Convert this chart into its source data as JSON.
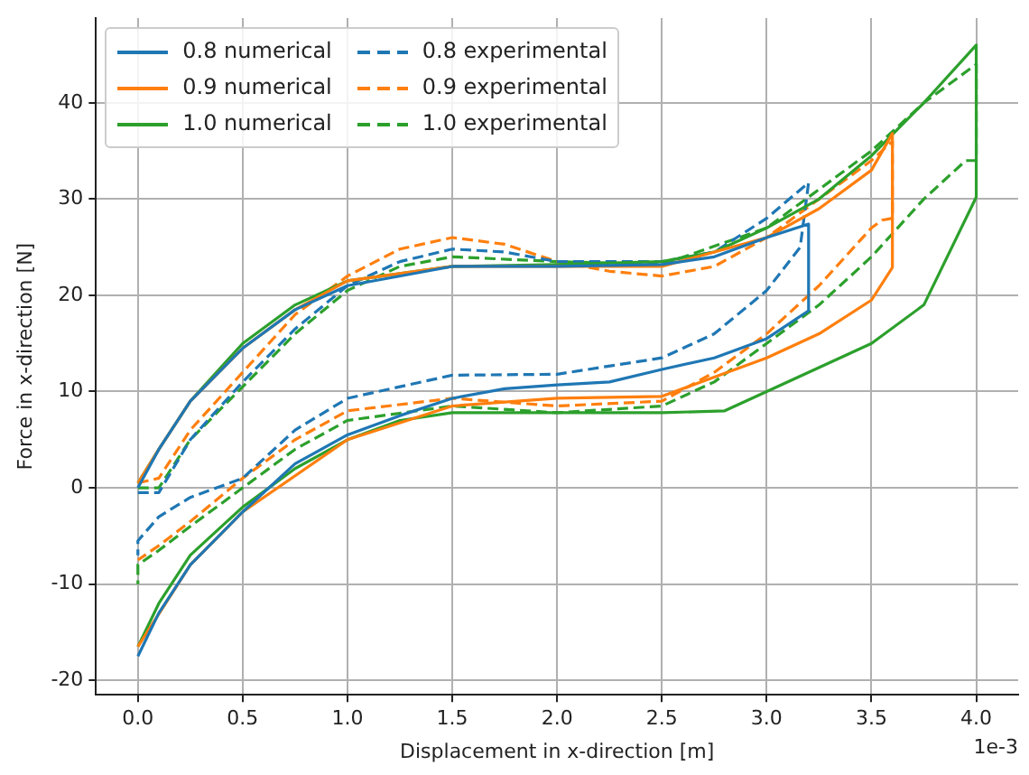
{
  "chart_data": {
    "type": "line",
    "xlabel": "Displacement in x-direction [m]",
    "ylabel": "Force in x-direction [N]",
    "xlim": [
      -0.2,
      4.2
    ],
    "ylim": [
      -21.5,
      48.8
    ],
    "xticks": [
      {
        "value": 0,
        "label": "0.0"
      },
      0.5,
      {
        "value": 1,
        "label": "1.0"
      },
      1.5,
      {
        "value": 2,
        "label": "2.0"
      },
      2.5,
      {
        "value": 3,
        "label": "3.0"
      },
      3.5,
      {
        "value": 4,
        "label": "4.0"
      }
    ],
    "yticks": [
      -20,
      -10,
      0,
      10,
      20,
      30,
      40
    ],
    "annotations": [
      "1e-3"
    ],
    "grid": true,
    "legend": "top left",
    "marker": "none",
    "series": [
      {
        "name": "0.8 numerical",
        "color": "#1f77b4",
        "line_style": "solid",
        "x": [
          0,
          0.1,
          0.25,
          0.5,
          0.75,
          1,
          1.5,
          2,
          2.5,
          2.75,
          3,
          3.2,
          3.2,
          3,
          2.75,
          2.5,
          2.25,
          2,
          1.75,
          1.5,
          1.25,
          1,
          0.75,
          0.5,
          0.25,
          0.1,
          0
        ],
        "values": [
          0,
          4,
          9,
          14.5,
          18.5,
          21,
          23,
          23,
          23.2,
          24,
          26,
          27.4,
          18.4,
          15.5,
          13.5,
          12.3,
          11,
          10.7,
          10.3,
          9.3,
          7.5,
          5.5,
          2.5,
          -2.5,
          -8,
          -13,
          -17.5
        ]
      },
      {
        "name": "0.9 numerical",
        "color": "#ff7f0e",
        "line_style": "solid",
        "x": [
          0,
          0.1,
          0.25,
          0.5,
          0.75,
          1,
          1.5,
          2,
          2.5,
          3,
          3.25,
          3.5,
          3.6,
          3.6,
          3.5,
          3.25,
          3,
          2.75,
          2.5,
          2,
          1.5,
          1,
          0.5,
          0.25,
          0
        ],
        "values": [
          0.5,
          4,
          9,
          14.5,
          18.5,
          21.5,
          23,
          23,
          23,
          26,
          29,
          33,
          36.8,
          22.9,
          19.5,
          16,
          13.5,
          11.5,
          9.5,
          9.3,
          8.5,
          5,
          -2.5,
          -8,
          -16.5
        ]
      },
      {
        "name": "1.0 numerical",
        "color": "#2ca02c",
        "line_style": "solid",
        "x": [
          0,
          0.1,
          0.25,
          0.5,
          0.75,
          1,
          1.5,
          2,
          2.5,
          2.75,
          3,
          3.25,
          3.5,
          3.75,
          4,
          4,
          3.75,
          3.5,
          3,
          2.8,
          2.5,
          2,
          1.5,
          1.25,
          1,
          0.75,
          0.5,
          0.25,
          0.1,
          0
        ],
        "values": [
          0.5,
          4,
          9,
          15,
          19,
          21.5,
          23,
          23.2,
          23.5,
          24.5,
          27,
          30,
          34.5,
          40,
          46,
          30.2,
          19,
          15,
          10,
          8,
          7.8,
          7.8,
          7.8,
          7,
          5,
          2,
          -2,
          -7,
          -12,
          -16.5
        ]
      },
      {
        "name": "0.8 experimental",
        "color": "#1f77b4",
        "line_style": "dashed",
        "x": [
          0,
          0.1,
          0.25,
          0.5,
          0.75,
          1,
          1.25,
          1.5,
          1.75,
          2,
          2.5,
          2.75,
          3,
          3.2,
          3.16,
          3,
          2.75,
          2.5,
          2,
          1.5,
          1.25,
          1,
          0.75,
          0.5,
          0.25,
          0.1,
          0,
          0
        ],
        "values": [
          -0.5,
          -0.5,
          5,
          11,
          16.5,
          21,
          23.5,
          24.8,
          24.5,
          23.5,
          23.5,
          24.5,
          28,
          31.7,
          25,
          20.5,
          16,
          13.5,
          11.8,
          11.7,
          10.5,
          9.3,
          6,
          1,
          -1,
          -3,
          -5.5,
          -7
        ]
      },
      {
        "name": "0.9 experimental",
        "color": "#ff7f0e",
        "line_style": "dashed",
        "x": [
          0,
          0.1,
          0.25,
          0.5,
          0.75,
          1,
          1.25,
          1.5,
          1.75,
          2,
          2.25,
          2.5,
          2.75,
          3,
          3.25,
          3.5,
          3.6,
          3.6,
          3.55,
          3.5,
          3.25,
          3,
          2.75,
          2.5,
          2,
          1.5,
          1,
          0.75,
          0.5,
          0.25,
          0.1,
          0
        ],
        "values": [
          0.5,
          1,
          6,
          12,
          18,
          22,
          24.8,
          26,
          25.3,
          23.5,
          22.5,
          22,
          23,
          26,
          30,
          34,
          36,
          28,
          27.8,
          27,
          21,
          16,
          12,
          9,
          8.5,
          9.3,
          8,
          5,
          1,
          -3.5,
          -6,
          -7.5
        ]
      },
      {
        "name": "1.0 experimental",
        "color": "#2ca02c",
        "line_style": "dashed",
        "x": [
          0,
          0.1,
          0.25,
          0.5,
          0.75,
          1,
          1.25,
          1.5,
          2,
          2.5,
          3,
          3.5,
          3.75,
          4,
          4,
          3.95,
          3.75,
          3.5,
          3.25,
          3,
          2.75,
          2.5,
          2,
          1.5,
          1,
          0.75,
          0.5,
          0.25,
          0.1,
          0,
          0
        ],
        "values": [
          0,
          0,
          5,
          10.5,
          16,
          20.5,
          23,
          24,
          23.5,
          23.2,
          27,
          35,
          40,
          44,
          34,
          34,
          30,
          24,
          19,
          15,
          11,
          8.5,
          7.8,
          8.5,
          7,
          4,
          0,
          -4,
          -6.5,
          -8,
          -10
        ]
      }
    ]
  }
}
